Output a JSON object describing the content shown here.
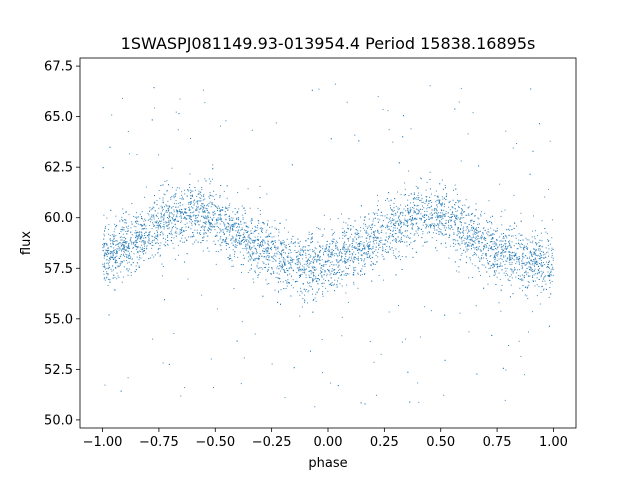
{
  "chart_data": {
    "type": "scatter",
    "title": "1SWASPJ081149.93-013954.4 Period 15838.16895s",
    "xlabel": "phase",
    "ylabel": "flux",
    "xlim": [
      -1.1,
      1.1
    ],
    "ylim": [
      49.6,
      67.9
    ],
    "xticks": [
      -1.0,
      -0.75,
      -0.5,
      -0.25,
      0.0,
      0.25,
      0.5,
      0.75,
      1.0
    ],
    "xtick_labels": [
      "−1.00",
      "−0.75",
      "−0.50",
      "−0.25",
      "0.00",
      "0.25",
      "0.50",
      "0.75",
      "1.00"
    ],
    "yticks": [
      50.0,
      52.5,
      55.0,
      57.5,
      60.0,
      62.5,
      65.0,
      67.5
    ],
    "ytick_labels": [
      "50.0",
      "52.5",
      "55.0",
      "57.5",
      "60.0",
      "62.5",
      "65.0",
      "67.5"
    ],
    "grid": false,
    "legend": false,
    "series_color": "#1f77b4",
    "trend": {
      "description_x": [
        -1.0,
        -0.9,
        -0.8,
        -0.7,
        -0.6,
        -0.5,
        -0.4,
        -0.3,
        -0.2,
        -0.1,
        0.0,
        0.1,
        0.2,
        0.3,
        0.4,
        0.5,
        0.6,
        0.7,
        0.8,
        0.9,
        1.0
      ],
      "x": [
        -1.0,
        -0.9,
        -0.8,
        -0.7,
        -0.6,
        -0.5,
        -0.4,
        -0.3,
        -0.2,
        -0.1,
        0.0,
        0.1,
        0.2,
        0.3,
        0.4,
        0.5,
        0.6,
        0.7,
        0.8,
        0.9,
        1.0
      ],
      "y": [
        58.0,
        58.6,
        59.3,
        60.0,
        60.3,
        59.9,
        59.2,
        58.5,
        57.9,
        57.6,
        57.7,
        58.2,
        58.9,
        59.7,
        60.3,
        60.0,
        59.3,
        58.6,
        58.1,
        57.8,
        57.8
      ]
    }
  }
}
